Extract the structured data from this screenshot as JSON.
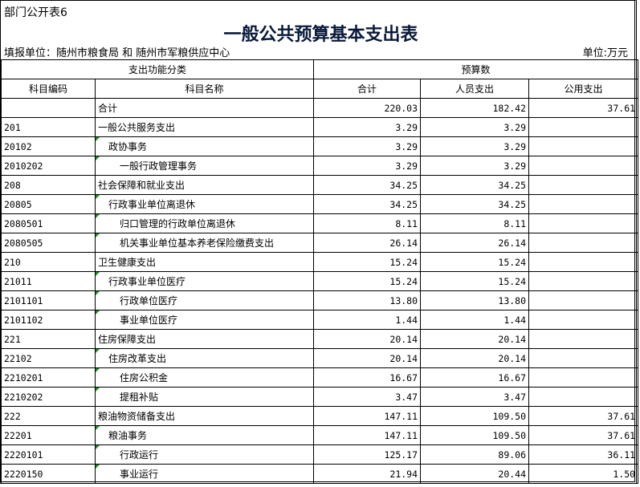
{
  "sheet_tag": "部门公开表6",
  "title": "一般公共预算基本支出表",
  "filing_unit": "填报单位：随州市粮食局 和 随州市军粮供应中心",
  "unit": "单位:万元",
  "headers": {
    "group_function": "支出功能分类",
    "group_budget": "预算数",
    "code": "科目编码",
    "name": "科目名称",
    "total": "合计",
    "personnel": "人员支出",
    "public": "公用支出"
  },
  "rows": [
    {
      "code": "",
      "name": "合计",
      "level": 1,
      "total": "220.03",
      "personnel": "182.42",
      "public": "37.61"
    },
    {
      "code": "201",
      "name": "一般公共服务支出",
      "level": 1,
      "total": "3.29",
      "personnel": "3.29",
      "public": ""
    },
    {
      "code": "20102",
      "name": "政协事务",
      "level": 2,
      "total": "3.29",
      "personnel": "3.29",
      "public": ""
    },
    {
      "code": "2010202",
      "name": "一般行政管理事务",
      "level": 3,
      "total": "3.29",
      "personnel": "3.29",
      "public": ""
    },
    {
      "code": "208",
      "name": "社会保障和就业支出",
      "level": 1,
      "total": "34.25",
      "personnel": "34.25",
      "public": ""
    },
    {
      "code": "20805",
      "name": "行政事业单位离退休",
      "level": 2,
      "total": "34.25",
      "personnel": "34.25",
      "public": ""
    },
    {
      "code": "2080501",
      "name": "归口管理的行政单位离退休",
      "level": 3,
      "total": "8.11",
      "personnel": "8.11",
      "public": ""
    },
    {
      "code": "2080505",
      "name": "机关事业单位基本养老保险缴费支出",
      "level": 3,
      "total": "26.14",
      "personnel": "26.14",
      "public": ""
    },
    {
      "code": "210",
      "name": "卫生健康支出",
      "level": 1,
      "total": "15.24",
      "personnel": "15.24",
      "public": ""
    },
    {
      "code": "21011",
      "name": "行政事业单位医疗",
      "level": 2,
      "total": "15.24",
      "personnel": "15.24",
      "public": ""
    },
    {
      "code": "2101101",
      "name": "行政单位医疗",
      "level": 3,
      "total": "13.80",
      "personnel": "13.80",
      "public": ""
    },
    {
      "code": "2101102",
      "name": "事业单位医疗",
      "level": 3,
      "total": "1.44",
      "personnel": "1.44",
      "public": ""
    },
    {
      "code": "221",
      "name": "住房保障支出",
      "level": 1,
      "total": "20.14",
      "personnel": "20.14",
      "public": ""
    },
    {
      "code": "22102",
      "name": "住房改革支出",
      "level": 2,
      "total": "20.14",
      "personnel": "20.14",
      "public": ""
    },
    {
      "code": "2210201",
      "name": "住房公积金",
      "level": 3,
      "total": "16.67",
      "personnel": "16.67",
      "public": ""
    },
    {
      "code": "2210202",
      "name": "提租补贴",
      "level": 3,
      "total": "3.47",
      "personnel": "3.47",
      "public": ""
    },
    {
      "code": "222",
      "name": "粮油物资储备支出",
      "level": 1,
      "total": "147.11",
      "personnel": "109.50",
      "public": "37.61"
    },
    {
      "code": "22201",
      "name": "粮油事务",
      "level": 2,
      "total": "147.11",
      "personnel": "109.50",
      "public": "37.61"
    },
    {
      "code": "2220101",
      "name": "行政运行",
      "level": 3,
      "total": "125.17",
      "personnel": "89.06",
      "public": "36.11"
    },
    {
      "code": "2220150",
      "name": "事业运行",
      "level": 3,
      "total": "21.94",
      "personnel": "20.44",
      "public": "1.50"
    }
  ]
}
